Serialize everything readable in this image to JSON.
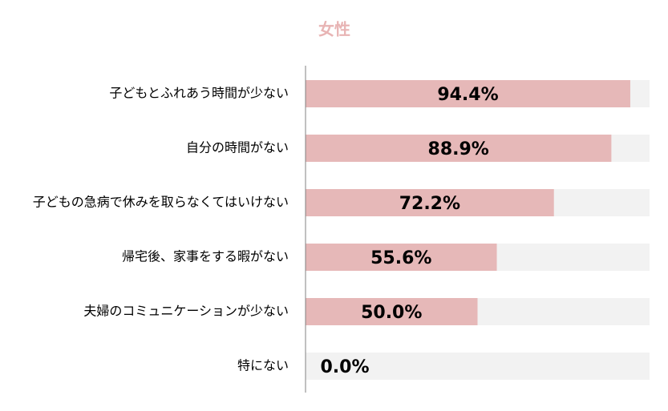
{
  "chart_data": {
    "type": "bar",
    "orientation": "horizontal",
    "title": "女性",
    "categories": [
      "子どもとふれあう時間が少ない",
      "自分の時間がない",
      "子どもの急病で休みを取らなくてはいけない",
      "帰宅後、家事をする暇がない",
      "夫婦のコミュニケーションが少ない",
      "特にない"
    ],
    "values": [
      94.4,
      88.9,
      72.2,
      55.6,
      50.0,
      0.0
    ],
    "value_labels": [
      "94.4%",
      "88.9%",
      "72.2%",
      "55.6%",
      "50.0%",
      "0.0%"
    ],
    "color": "#e6b8b8",
    "track_color": "#f2f2f2",
    "xlim": [
      0,
      100
    ]
  }
}
